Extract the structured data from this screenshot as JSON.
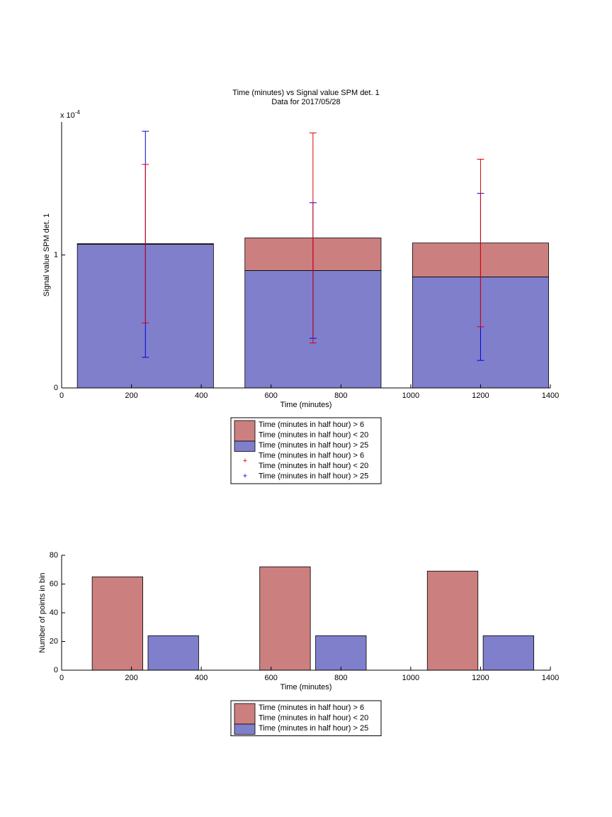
{
  "chart_data": [
    {
      "type": "bar",
      "stacked": true,
      "title": [
        "Time (minutes) vs Signal value SPM det. 1",
        "Data for 2017/05/28"
      ],
      "y_multiplier": {
        "base": "x 10",
        "exponent": "-4"
      },
      "xlabel": "Time (minutes)",
      "ylabel": "Signal value SPM det. 1",
      "x": [
        240,
        720,
        1200
      ],
      "series": [
        {
          "name": [
            "Time (minutes in half hour) > 6",
            "Time (minutes in half hour) < 20"
          ],
          "color": "#cc7f7f",
          "error_color": "#e00000",
          "values": [
            0.005,
            0.245,
            0.255
          ],
          "errors": [
            0.596,
            0.79,
            0.63
          ]
        },
        {
          "name": [
            "Time (minutes in half hour) > 25"
          ],
          "color": "#7f7fcc",
          "error_color": "#0000e0",
          "values": [
            1.08,
            0.883,
            0.835
          ],
          "errors": [
            0.85,
            0.51,
            0.628
          ]
        }
      ],
      "xlim": [
        0,
        1400
      ],
      "xticks": [
        0,
        200,
        400,
        600,
        800,
        1000,
        1200,
        1400
      ],
      "ylim": [
        0,
        2
      ],
      "yticks": [
        0,
        1
      ]
    },
    {
      "type": "bar",
      "stacked": false,
      "xlabel": "Time (minutes)",
      "ylabel": "Number of points in bin",
      "x": [
        240,
        720,
        1200
      ],
      "series": [
        {
          "name": [
            "Time (minutes in half hour) > 6",
            "Time (minutes in half hour) < 20"
          ],
          "color": "#cc7f7f",
          "values": [
            65,
            72,
            69
          ]
        },
        {
          "name": [
            "Time (minutes in half hour) > 25"
          ],
          "color": "#7f7fcc",
          "values": [
            24,
            24,
            24
          ]
        }
      ],
      "xlim": [
        0,
        1400
      ],
      "xticks": [
        0,
        200,
        400,
        600,
        800,
        1000,
        1200,
        1400
      ],
      "ylim": [
        0,
        80
      ],
      "yticks": [
        0,
        20,
        40,
        60,
        80
      ]
    }
  ]
}
